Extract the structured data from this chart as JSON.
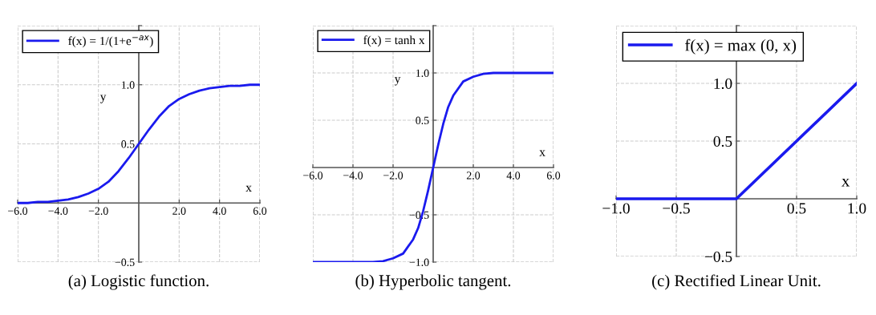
{
  "chart_data": [
    {
      "type": "line",
      "xlabel": "x",
      "ylabel": "y",
      "annotations": [
        "(a) Logistic function."
      ],
      "legend": "top left",
      "grid": true,
      "line_style": "solid",
      "xlim": [
        -6,
        6
      ],
      "ylim": [
        -0.5,
        1.5
      ],
      "xticks": [
        {
          "value": -6,
          "label": "−6.0"
        },
        {
          "value": -4,
          "label": "−4.0"
        },
        {
          "value": -2,
          "label": "−2.0"
        },
        {
          "value": 2,
          "label": "2.0"
        },
        {
          "value": 4,
          "label": "4.0"
        },
        {
          "value": 6,
          "label": "6.0"
        }
      ],
      "yticks": [
        {
          "value": -0.5,
          "label": "−0.5"
        },
        {
          "value": 0.5,
          "label": "0.5"
        },
        {
          "value": 1.0,
          "label": "1.0"
        },
        {
          "value": 1.5,
          "label": null
        }
      ],
      "series": [
        {
          "name": "f(x) = 1/(1+e$^{−ax}$)",
          "color": "#1a1aee",
          "x": [
            -6,
            -5.5,
            -5,
            -4.5,
            -4,
            -3.5,
            -3,
            -2.5,
            -2,
            -1.5,
            -1,
            -0.5,
            0,
            0.5,
            1,
            1.5,
            2,
            2.5,
            3,
            3.5,
            4,
            4.5,
            5,
            5.5,
            6
          ],
          "values": [
            0.0,
            0.0,
            0.01,
            0.01,
            0.02,
            0.03,
            0.05,
            0.08,
            0.12,
            0.18,
            0.27,
            0.38,
            0.5,
            0.62,
            0.73,
            0.82,
            0.88,
            0.92,
            0.95,
            0.97,
            0.98,
            0.99,
            0.99,
            1.0,
            1.0
          ]
        }
      ]
    },
    {
      "type": "line",
      "xlabel": "x",
      "ylabel": "y",
      "annotations": [
        "(b) Hyperbolic tangent."
      ],
      "legend": "top left",
      "grid": true,
      "line_style": "solid",
      "xlim": [
        -6,
        6
      ],
      "ylim": [
        -1,
        1.5
      ],
      "xticks": [
        {
          "value": -6,
          "label": "−6.0"
        },
        {
          "value": -4,
          "label": "−4.0"
        },
        {
          "value": -2,
          "label": "−2.0"
        },
        {
          "value": 2,
          "label": "2.0"
        },
        {
          "value": 4,
          "label": "4.0"
        },
        {
          "value": 6,
          "label": "6.0"
        }
      ],
      "yticks": [
        {
          "value": -1.0,
          "label": "−1.0"
        },
        {
          "value": -0.5,
          "label": "−0.5"
        },
        {
          "value": 0.5,
          "label": "0.5"
        },
        {
          "value": 1.0,
          "label": "1.0"
        },
        {
          "value": 1.5,
          "label": null
        }
      ],
      "series": [
        {
          "name": "f(x) = tanh x",
          "color": "#1a1aee",
          "x": [
            -6,
            -4,
            -3,
            -2.5,
            -2,
            -1.5,
            -1,
            -0.75,
            -0.5,
            -0.25,
            0,
            0.25,
            0.5,
            0.75,
            1,
            1.5,
            2,
            2.5,
            3,
            4,
            6
          ],
          "values": [
            -1.0,
            -1.0,
            -1.0,
            -0.99,
            -0.96,
            -0.91,
            -0.76,
            -0.64,
            -0.46,
            -0.24,
            0,
            0.24,
            0.46,
            0.64,
            0.76,
            0.91,
            0.96,
            0.99,
            1.0,
            1.0,
            1.0
          ]
        }
      ]
    },
    {
      "type": "line",
      "xlabel": "x",
      "annotations": [
        "(c) Rectified Linear Unit."
      ],
      "legend": "top left",
      "grid": true,
      "line_style": "solid",
      "xlim": [
        -1,
        1
      ],
      "ylim": [
        -0.5,
        1.5
      ],
      "xticks": [
        {
          "value": -1.0,
          "label": "−1.0"
        },
        {
          "value": -0.5,
          "label": "−0.5"
        },
        {
          "value": 0.5,
          "label": "0.5"
        },
        {
          "value": 1.0,
          "label": "1.0"
        }
      ],
      "yticks": [
        {
          "value": -0.5,
          "label": "−0.5"
        },
        {
          "value": 0.5,
          "label": "0.5"
        },
        {
          "value": 1.0,
          "label": "1.0"
        },
        {
          "value": 1.5,
          "label": null
        }
      ],
      "series": [
        {
          "name": "f(x) = max (0, x)",
          "color": "#1a1aee",
          "x": [
            -1,
            0,
            1
          ],
          "values": [
            0,
            0,
            1
          ]
        }
      ]
    }
  ]
}
